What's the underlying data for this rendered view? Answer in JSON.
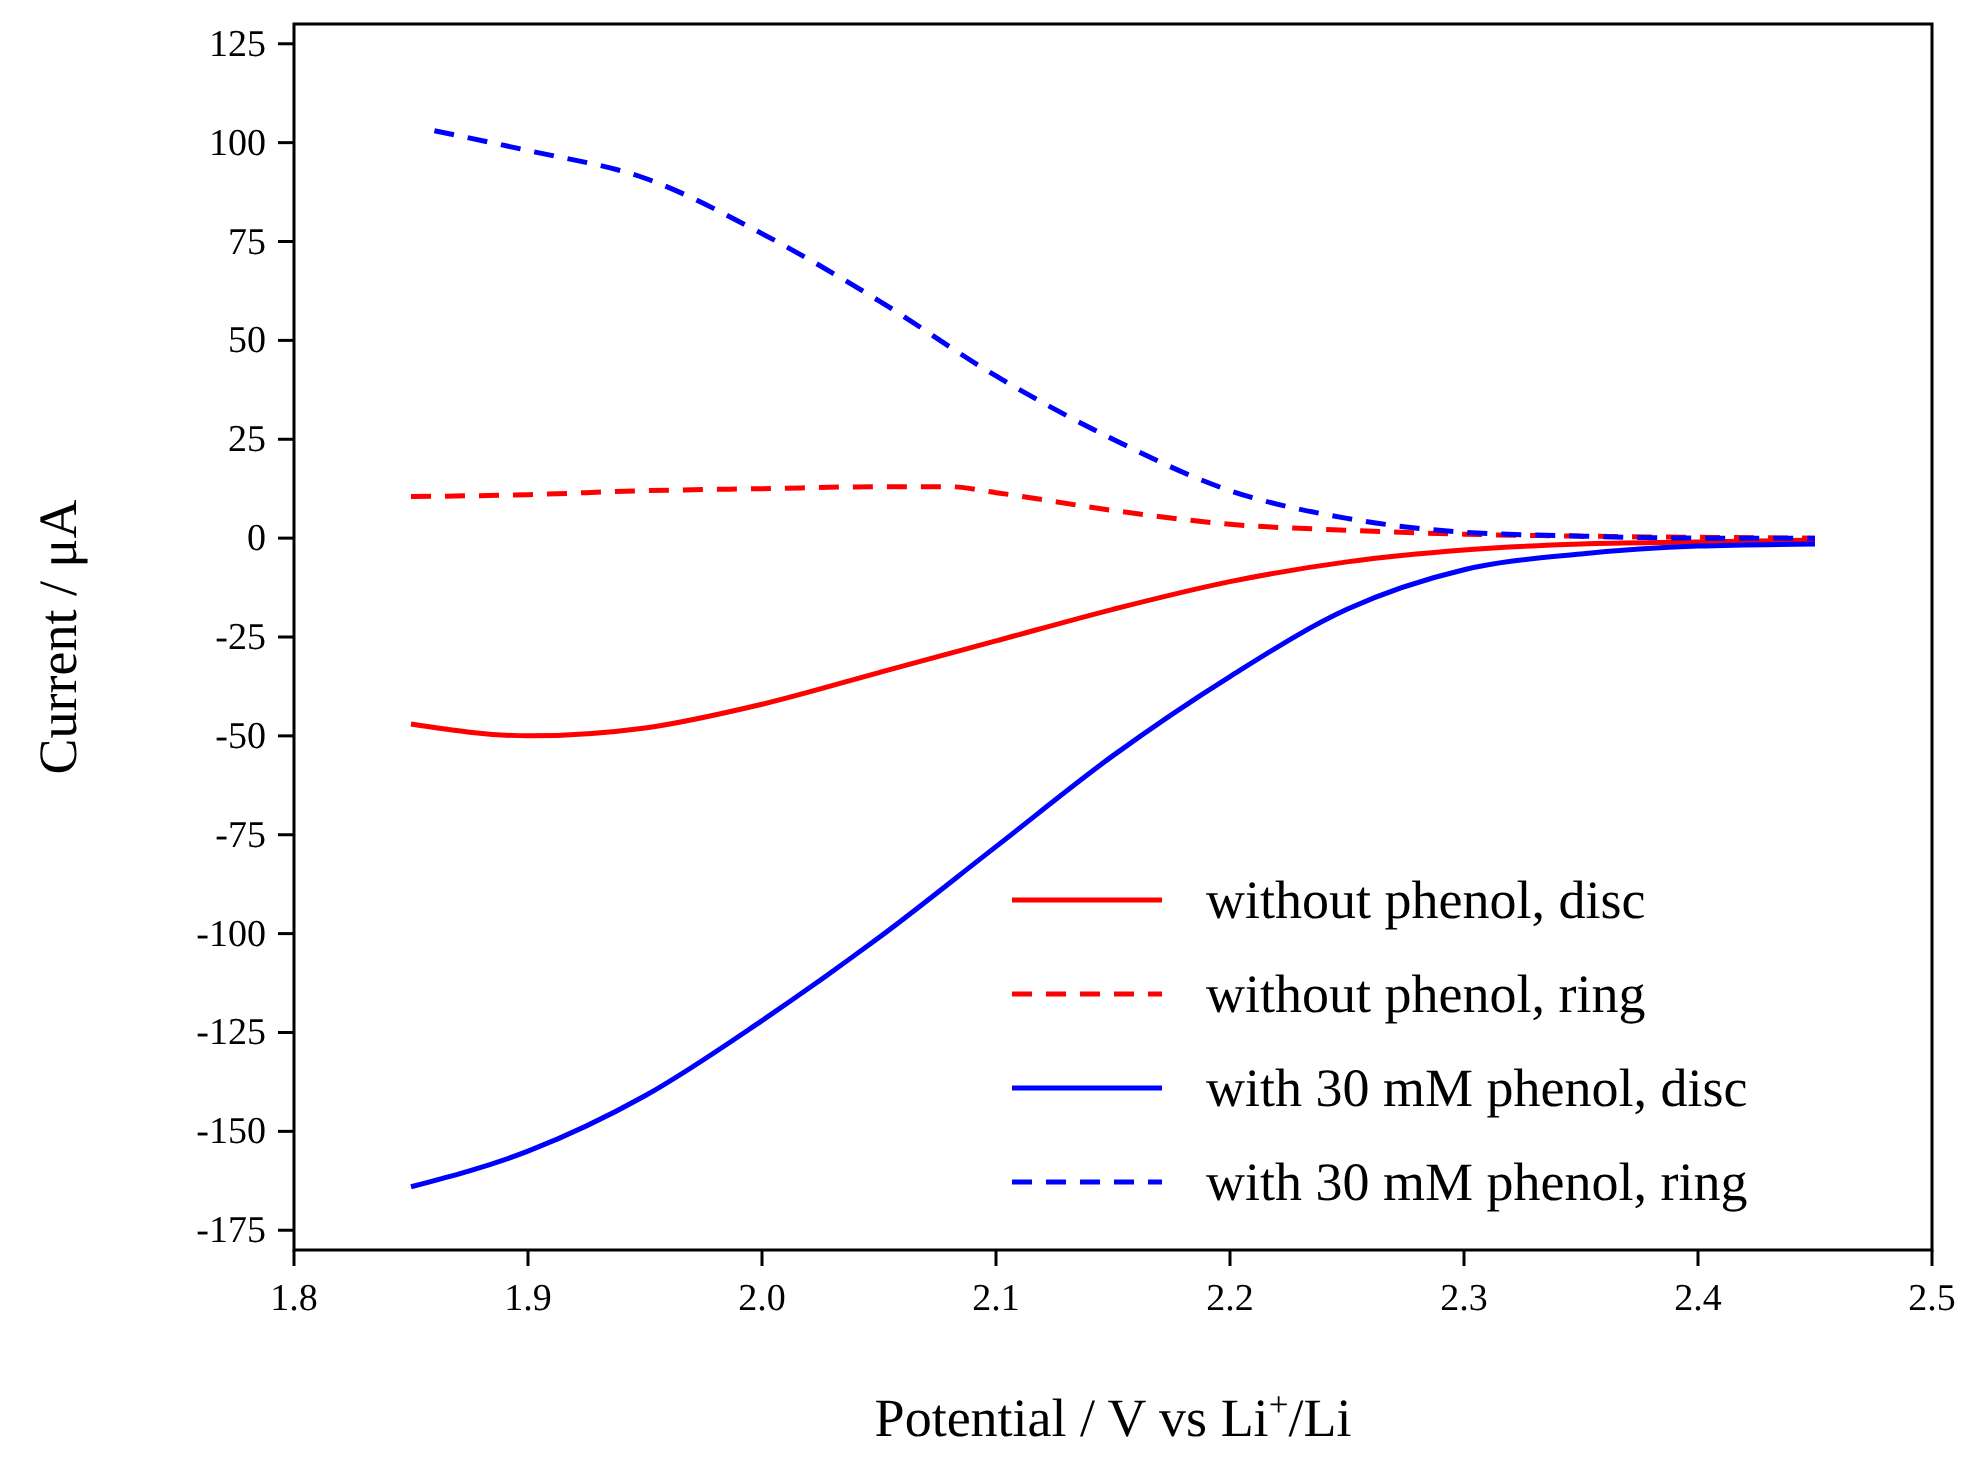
{
  "chart_data": {
    "type": "line",
    "xlabel": "Potential / V vs Li$^{+}$/Li",
    "ylabel": "Current / μA",
    "xlim": [
      1.8,
      2.5
    ],
    "xticks": [
      {
        "value": 1.8,
        "label": "1.8"
      },
      {
        "value": 1.9,
        "label": "1.9"
      },
      {
        "value": 2.0,
        "label": "2.0"
      },
      {
        "value": 2.1,
        "label": "2.1"
      },
      {
        "value": 2.2,
        "label": "2.2"
      },
      {
        "value": 2.3,
        "label": "2.3"
      },
      {
        "value": 2.4,
        "label": "2.4"
      },
      {
        "value": 2.5,
        "label": "2.5"
      }
    ],
    "ylim": [
      -180,
      130
    ],
    "yticks": [
      -175,
      -150,
      -125,
      -100,
      -75,
      -50,
      -25,
      0,
      25,
      50,
      75,
      100,
      125
    ],
    "legend": "bottom right",
    "grid": false,
    "series": [
      {
        "name": "without phenol, disc",
        "color": "#ff0000",
        "line_style": "solid",
        "x": [
          1.85,
          1.9,
          1.95,
          2.0,
          2.05,
          2.1,
          2.15,
          2.2,
          2.25,
          2.3,
          2.35,
          2.4,
          2.45
        ],
        "values": [
          -47,
          -50,
          -48,
          -42,
          -34,
          -26,
          -18,
          -11,
          -6,
          -3,
          -1.5,
          -1,
          -0.5
        ]
      },
      {
        "name": "without phenol, ring",
        "color": "#ff0000",
        "line_style": "dashed",
        "x": [
          1.85,
          1.9,
          1.95,
          2.0,
          2.05,
          2.08,
          2.1,
          2.15,
          2.2,
          2.25,
          2.3,
          2.35,
          2.4,
          2.45
        ],
        "values": [
          10.5,
          11,
          12,
          12.5,
          13,
          13,
          11.5,
          7,
          3.5,
          2,
          1,
          0.5,
          0.2,
          0
        ]
      },
      {
        "name": "with 30 mM phenol, disc",
        "color": "#0000ff",
        "line_style": "solid",
        "x": [
          1.85,
          1.9,
          1.95,
          2.0,
          2.05,
          2.1,
          2.15,
          2.2,
          2.25,
          2.3,
          2.35,
          2.4,
          2.45
        ],
        "values": [
          -164,
          -155,
          -141,
          -122,
          -101,
          -78,
          -55,
          -35,
          -18,
          -8,
          -4,
          -2,
          -1.5
        ]
      },
      {
        "name": "with 30 mM phenol, ring",
        "color": "#0000ff",
        "line_style": "dashed",
        "x": [
          1.86,
          1.9,
          1.95,
          2.0,
          2.05,
          2.1,
          2.15,
          2.2,
          2.25,
          2.3,
          2.35,
          2.4,
          2.45
        ],
        "values": [
          103,
          98,
          91,
          77,
          60,
          41,
          25,
          12,
          5,
          1.5,
          0.5,
          0,
          0
        ]
      }
    ]
  }
}
